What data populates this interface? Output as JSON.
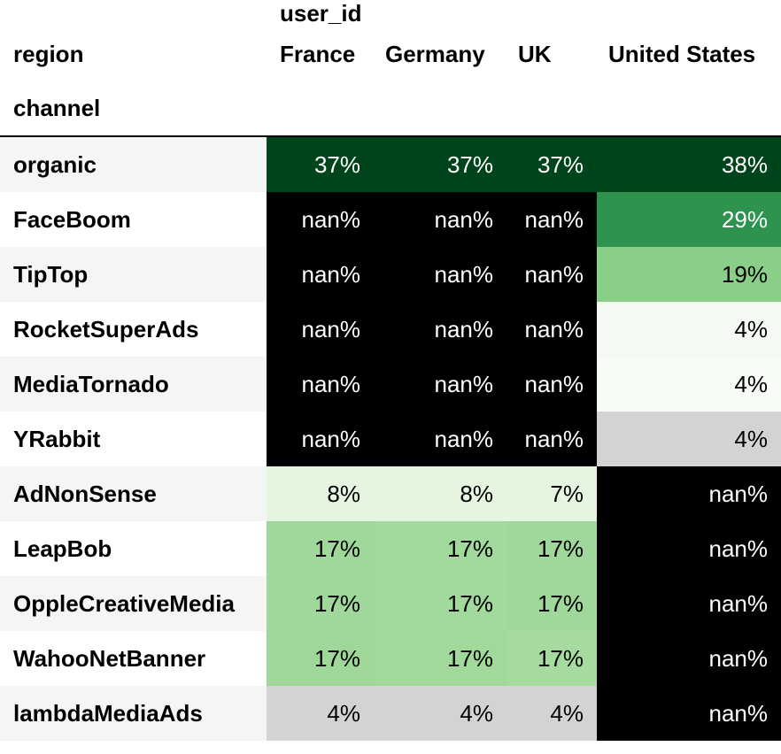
{
  "header": {
    "columns_name": "user_id",
    "columns_index_name": "region",
    "row_index_name": "channel",
    "regions": [
      "France",
      "Germany",
      "UK",
      "United States"
    ]
  },
  "chart_data": {
    "type": "table",
    "value_name": "user_id",
    "column_group": "region",
    "row_group": "channel",
    "columns": [
      "France",
      "Germany",
      "UK",
      "United States"
    ],
    "rows": [
      {
        "channel": "organic",
        "values": [
          "37%",
          "37%",
          "37%",
          "38%"
        ]
      },
      {
        "channel": "FaceBoom",
        "values": [
          "nan%",
          "nan%",
          "nan%",
          "29%"
        ]
      },
      {
        "channel": "TipTop",
        "values": [
          "nan%",
          "nan%",
          "nan%",
          "19%"
        ]
      },
      {
        "channel": "RocketSuperAds",
        "values": [
          "nan%",
          "nan%",
          "nan%",
          "4%"
        ]
      },
      {
        "channel": "MediaTornado",
        "values": [
          "nan%",
          "nan%",
          "nan%",
          "4%"
        ]
      },
      {
        "channel": "YRabbit",
        "values": [
          "nan%",
          "nan%",
          "nan%",
          "4%"
        ]
      },
      {
        "channel": "AdNonSense",
        "values": [
          "8%",
          "8%",
          "7%",
          "nan%"
        ]
      },
      {
        "channel": "LeapBob",
        "values": [
          "17%",
          "17%",
          "17%",
          "nan%"
        ]
      },
      {
        "channel": "OppleCreativeMedia",
        "values": [
          "17%",
          "17%",
          "17%",
          "nan%"
        ]
      },
      {
        "channel": "WahooNetBanner",
        "values": [
          "17%",
          "17%",
          "17%",
          "nan%"
        ]
      },
      {
        "channel": "lambdaMediaAds",
        "values": [
          "4%",
          "4%",
          "4%",
          "nan%"
        ]
      }
    ],
    "cell_colors": [
      [
        "#00441b",
        "#00441b",
        "#00441b",
        "#00441b"
      ],
      [
        "#000000",
        "#000000",
        "#000000",
        "#2f9350"
      ],
      [
        "#000000",
        "#000000",
        "#000000",
        "#8ace88"
      ],
      [
        "#000000",
        "#000000",
        "#000000",
        "#f4f9f1"
      ],
      [
        "#000000",
        "#000000",
        "#000000",
        "#f7fcf5"
      ],
      [
        "#000000",
        "#000000",
        "#000000",
        "#d3d3d3"
      ],
      [
        "#e5f5e0",
        "#e5f5e0",
        "#e5f5e0",
        "#000000"
      ],
      [
        "#9fd89a",
        "#a2d99c",
        "#9fd89a",
        "#000000"
      ],
      [
        "#9fd89a",
        "#a2d99c",
        "#9fd89a",
        "#000000"
      ],
      [
        "#9ed798",
        "#a1d99b",
        "#a5db9f",
        "#000000"
      ],
      [
        "#d3d3d3",
        "#d3d3d3",
        "#d3d3d3",
        "#000000"
      ]
    ],
    "text_colors": [
      [
        "#ffffff",
        "#ffffff",
        "#ffffff",
        "#ffffff"
      ],
      [
        "#ffffff",
        "#ffffff",
        "#ffffff",
        "#ffffff"
      ],
      [
        "#ffffff",
        "#ffffff",
        "#ffffff",
        "#000000"
      ],
      [
        "#ffffff",
        "#ffffff",
        "#ffffff",
        "#000000"
      ],
      [
        "#ffffff",
        "#ffffff",
        "#ffffff",
        "#000000"
      ],
      [
        "#ffffff",
        "#ffffff",
        "#ffffff",
        "#000000"
      ],
      [
        "#000000",
        "#000000",
        "#000000",
        "#ffffff"
      ],
      [
        "#000000",
        "#000000",
        "#000000",
        "#ffffff"
      ],
      [
        "#000000",
        "#000000",
        "#000000",
        "#ffffff"
      ],
      [
        "#000000",
        "#000000",
        "#000000",
        "#ffffff"
      ],
      [
        "#000000",
        "#000000",
        "#000000",
        "#ffffff"
      ]
    ],
    "colormap": "Greens",
    "nan_color": "#000000"
  }
}
